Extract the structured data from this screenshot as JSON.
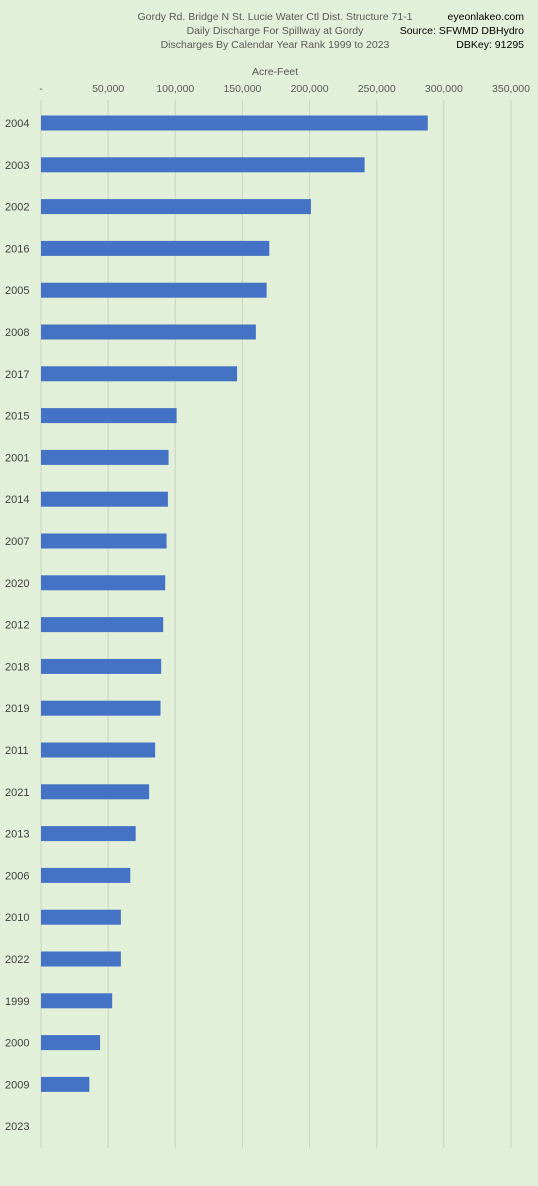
{
  "header": {
    "title_lines": [
      "Gordy Rd. Bridge N St. Lucie Water Ctl Dist. Structure 71-1",
      "Daily Discharge For Spillway at Gordy",
      "Discharges By Calendar Year Rank 1999 to 2023"
    ],
    "source_lines": [
      "eyeonlakeo.com",
      "Source: SFWMD DBHydro",
      "DBKey: 91295"
    ]
  },
  "chart_data": {
    "type": "bar",
    "orientation": "horizontal",
    "title": "Gordy Rd. Bridge N St. Lucie Water Ctl Dist. Structure 71-1 / Daily Discharge For Spillway at Gordy / Discharges By Calendar Year Rank 1999 to 2023",
    "xlabel": "Acre-Feet",
    "ylabel": "",
    "xlim": [
      0,
      350000
    ],
    "x_ticks": [
      0,
      50000,
      100000,
      150000,
      200000,
      250000,
      300000,
      350000
    ],
    "x_tick_labels": [
      "-",
      "50,000",
      "100,000",
      "150,000",
      "200,000",
      "250,000",
      "300,000",
      "350,000"
    ],
    "x_axis_position": "top",
    "grid": "vertical",
    "bar_color": "#4472c4",
    "categories": [
      "2004",
      "2003",
      "2002",
      "2016",
      "2005",
      "2008",
      "2017",
      "2015",
      "2001",
      "2014",
      "2007",
      "2020",
      "2012",
      "2018",
      "2019",
      "2011",
      "2021",
      "2013",
      "2006",
      "2010",
      "2022",
      "1999",
      "2000",
      "2009",
      "2023"
    ],
    "values": [
      288000,
      241000,
      201000,
      170000,
      168000,
      160000,
      146000,
      101000,
      95000,
      94500,
      93500,
      92500,
      91000,
      89500,
      89000,
      85000,
      80500,
      70500,
      66500,
      59500,
      59500,
      53000,
      44000,
      36000,
      0
    ]
  }
}
